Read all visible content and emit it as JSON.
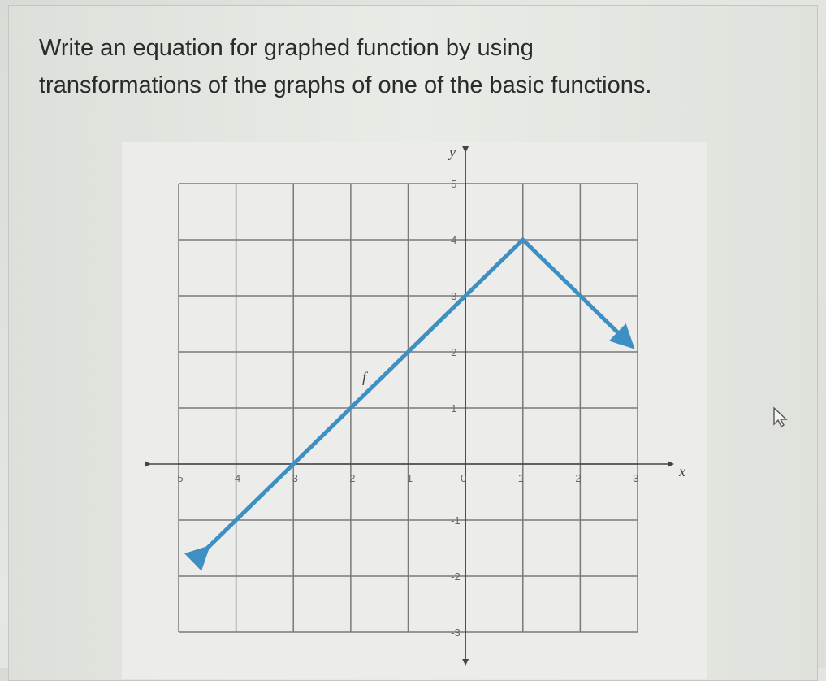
{
  "question": {
    "line1": "Write an equation for graphed function by using",
    "line2": "transformations of the graphs of one of the basic functions."
  },
  "colors": {
    "curve": "#3d8fc4",
    "grid": "#7a7a7a"
  },
  "chart_data": {
    "type": "line",
    "title": "",
    "xlabel": "x",
    "ylabel": "y",
    "xlim": [
      -5,
      3
    ],
    "ylim": [
      -3,
      5
    ],
    "grid": true,
    "x_ticks": [
      "-5",
      "-4",
      "-3",
      "-2",
      "-1",
      "0",
      "1",
      "2",
      "3"
    ],
    "y_ticks": [
      "-3",
      "-2",
      "-1",
      "1",
      "2",
      "3",
      "4",
      "5"
    ],
    "series": [
      {
        "name": "f",
        "x": [
          -4.6,
          -4,
          -3,
          -2,
          -1,
          0,
          1,
          2,
          2.8
        ],
        "y": [
          -1.6,
          -1,
          0,
          1,
          2,
          3,
          4,
          3,
          2.2
        ],
        "arrows": "both"
      }
    ]
  },
  "icons": {
    "cursor": "mouse-pointer-icon"
  }
}
